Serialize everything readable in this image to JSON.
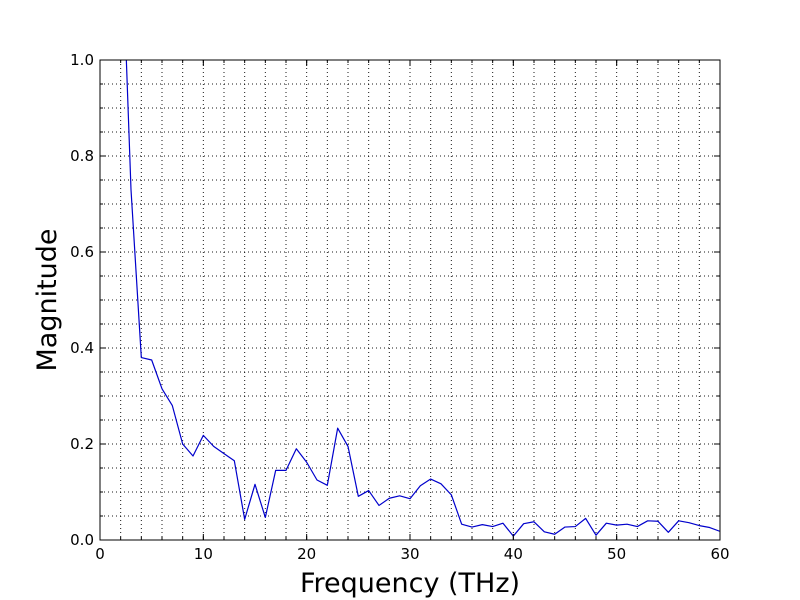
{
  "chart_data": {
    "type": "line",
    "title": "",
    "xlabel": "Frequency (THz)",
    "ylabel": "Magnitude",
    "xlim": [
      0,
      60
    ],
    "ylim": [
      0.0,
      1.0
    ],
    "x_ticks": [
      0,
      10,
      20,
      30,
      40,
      50,
      60
    ],
    "x_tick_labels": [
      "0",
      "10",
      "20",
      "30",
      "40",
      "50",
      "60"
    ],
    "y_ticks": [
      0.0,
      0.2,
      0.4,
      0.6,
      0.8,
      1.0
    ],
    "y_tick_labels": [
      "0.0",
      "0.2",
      "0.4",
      "0.6",
      "0.8",
      "1.0"
    ],
    "x_minor_step": 2,
    "y_minor_step": 0.05,
    "grid": true,
    "grid_style": "dotted",
    "legend": "none",
    "series": [
      {
        "color": "#0000cc",
        "x": [
          2.5,
          3,
          4,
          5,
          6,
          7,
          8,
          9,
          10,
          11,
          12,
          13,
          14,
          15,
          16,
          17,
          18,
          19,
          20,
          21,
          22,
          23,
          24,
          25,
          26,
          27,
          28,
          29,
          30,
          31,
          32,
          33,
          34,
          35,
          36,
          37,
          38,
          39,
          40,
          41,
          42,
          43,
          44,
          45,
          46,
          47,
          48,
          49,
          50,
          51,
          52,
          53,
          54,
          55,
          56,
          57,
          58,
          59,
          60
        ],
        "y": [
          1.03,
          0.73,
          0.38,
          0.375,
          0.315,
          0.28,
          0.2,
          0.175,
          0.218,
          0.195,
          0.18,
          0.165,
          0.043,
          0.116,
          0.047,
          0.145,
          0.145,
          0.19,
          0.162,
          0.125,
          0.114,
          0.233,
          0.195,
          0.091,
          0.103,
          0.072,
          0.087,
          0.092,
          0.086,
          0.113,
          0.127,
          0.117,
          0.094,
          0.033,
          0.027,
          0.032,
          0.028,
          0.035,
          0.008,
          0.034,
          0.038,
          0.017,
          0.012,
          0.027,
          0.028,
          0.045,
          0.01,
          0.035,
          0.031,
          0.033,
          0.028,
          0.04,
          0.039,
          0.016,
          0.04,
          0.036,
          0.03,
          0.026,
          0.018
        ]
      }
    ]
  }
}
